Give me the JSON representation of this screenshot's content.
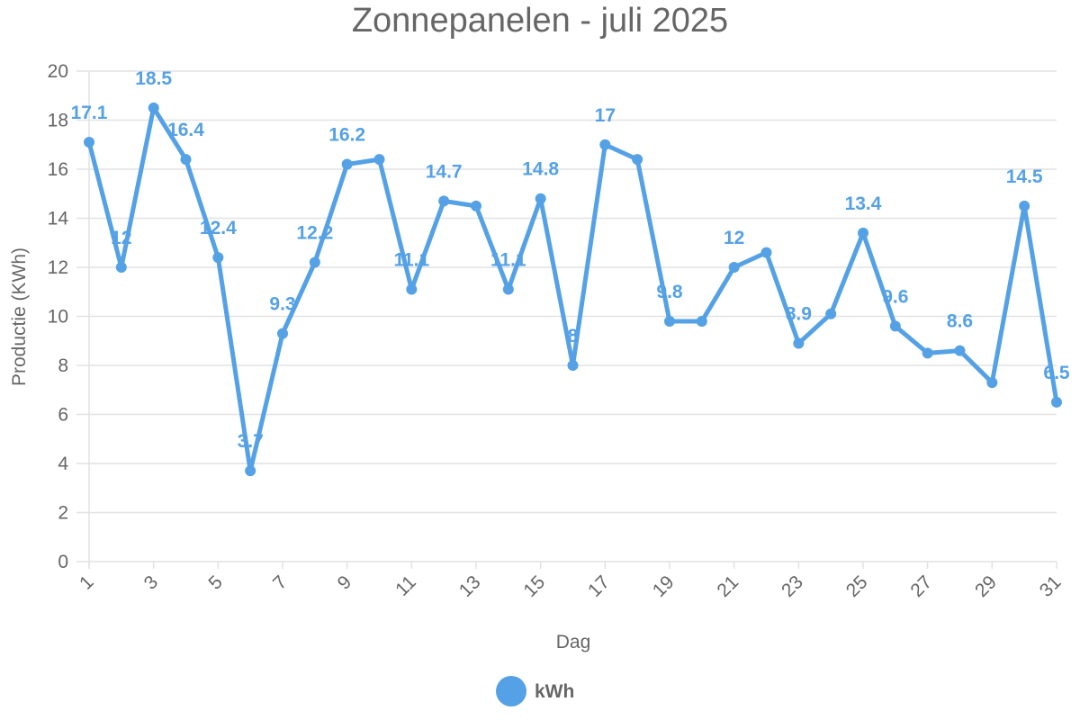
{
  "chart_data": {
    "type": "line",
    "title": "Zonnepanelen - juli 2025",
    "xlabel": "Dag",
    "ylabel": "Productie (KWh)",
    "ylim": [
      0,
      20
    ],
    "yticks": [
      "0",
      "2",
      "4",
      "6",
      "8",
      "10",
      "12",
      "14",
      "16",
      "18",
      "20"
    ],
    "x": [
      1,
      2,
      3,
      4,
      5,
      6,
      7,
      8,
      9,
      10,
      11,
      12,
      13,
      14,
      15,
      16,
      17,
      18,
      19,
      20,
      21,
      22,
      23,
      24,
      25,
      26,
      27,
      28,
      29,
      30,
      31
    ],
    "xtick_labels": [
      "1",
      "3",
      "5",
      "7",
      "9",
      "11",
      "13",
      "15",
      "17",
      "19",
      "21",
      "23",
      "25",
      "27",
      "29",
      "31"
    ],
    "grid": true,
    "legend_position": "bottom",
    "series": [
      {
        "name": "kWh",
        "color": "#55a1e5",
        "values": [
          17.1,
          12,
          18.5,
          16.4,
          12.4,
          3.7,
          9.3,
          12.2,
          16.2,
          16.4,
          11.1,
          14.7,
          14.5,
          11.1,
          14.8,
          8,
          17,
          16.4,
          9.8,
          9.8,
          12,
          12.6,
          8.9,
          10.1,
          13.4,
          9.6,
          8.5,
          8.6,
          7.3,
          14.5,
          6.5
        ],
        "data_labels": {
          "1": "17.1",
          "2": "12",
          "3": "18.5",
          "4": "16.4",
          "5": "12.4",
          "6": "3.7",
          "7": "9.3",
          "8": "12.2",
          "9": "16.2",
          "11": "11.1",
          "12": "14.7",
          "14": "11.1",
          "15": "14.8",
          "16": "8",
          "17": "17",
          "19": "9.8",
          "21": "12",
          "23": "8.9",
          "25": "13.4",
          "26": "9.6",
          "28": "8.6",
          "30": "14.5",
          "31": "6.5"
        }
      }
    ]
  }
}
